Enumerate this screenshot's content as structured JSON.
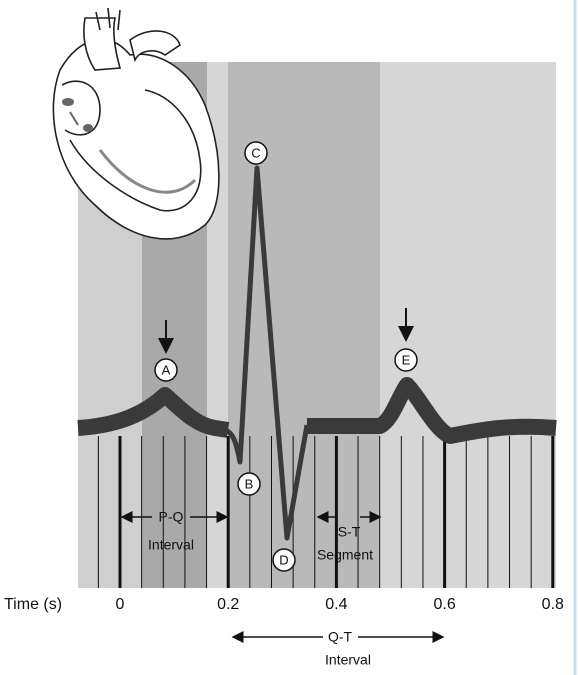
{
  "axis": {
    "label": "Time (s)",
    "ticks": [
      0,
      0.2,
      0.4,
      0.6,
      0.8
    ]
  },
  "points": [
    "A",
    "B",
    "C",
    "D",
    "E"
  ],
  "intervals": [
    {
      "lines": [
        "P-Q",
        "Interval"
      ]
    },
    {
      "lines": [
        "S-T",
        "Segment"
      ]
    },
    {
      "lines": [
        "Q-T",
        "Interval"
      ]
    }
  ]
}
